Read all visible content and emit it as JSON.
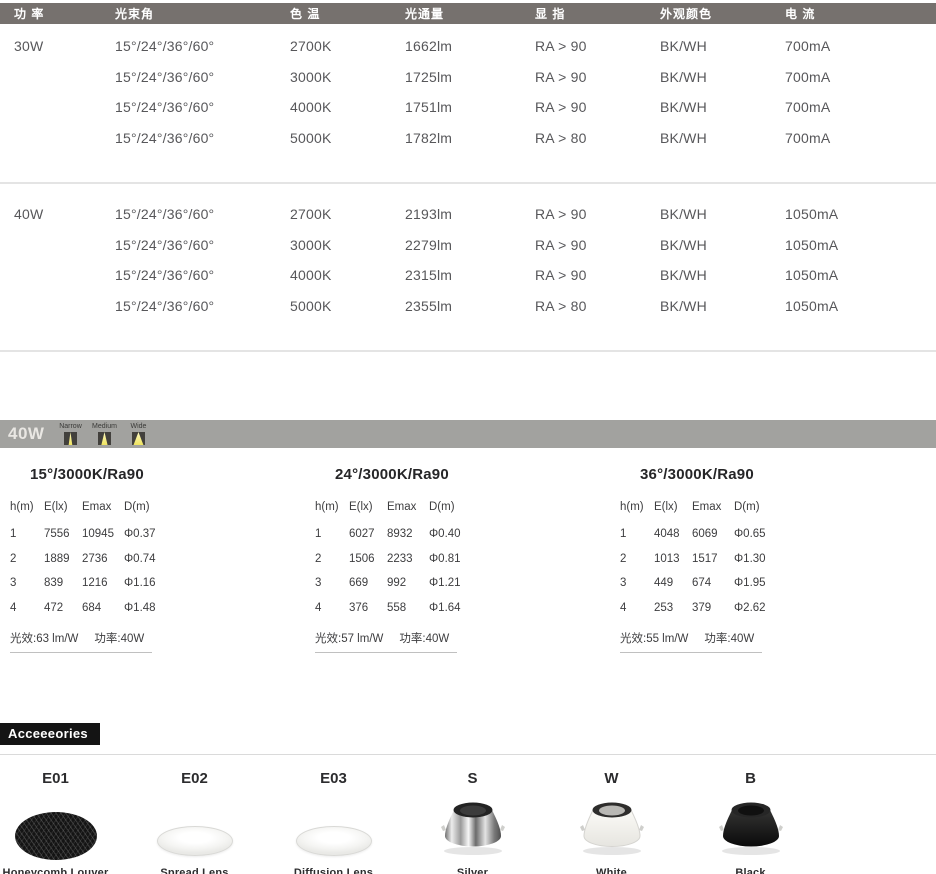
{
  "spec_table": {
    "headers": [
      "功 率",
      "光束角",
      "色 温",
      "光通量",
      "显 指",
      "外观颜色",
      "电 流"
    ],
    "groups": [
      {
        "power": "30W",
        "rows": [
          {
            "beam": "15°/24°/36°/60°",
            "cct": "2700K",
            "flux": "1662lm",
            "cri": "RA > 90",
            "finish": "BK/WH",
            "current": "700mA"
          },
          {
            "beam": "15°/24°/36°/60°",
            "cct": "3000K",
            "flux": "1725lm",
            "cri": "RA > 90",
            "finish": "BK/WH",
            "current": "700mA"
          },
          {
            "beam": "15°/24°/36°/60°",
            "cct": "4000K",
            "flux": "1751lm",
            "cri": "RA > 90",
            "finish": "BK/WH",
            "current": "700mA"
          },
          {
            "beam": "15°/24°/36°/60°",
            "cct": "5000K",
            "flux": "1782lm",
            "cri": "RA > 80",
            "finish": "BK/WH",
            "current": "700mA"
          }
        ]
      },
      {
        "power": "40W",
        "rows": [
          {
            "beam": "15°/24°/36°/60°",
            "cct": "2700K",
            "flux": "2193lm",
            "cri": "RA > 90",
            "finish": "BK/WH",
            "current": "1050mA"
          },
          {
            "beam": "15°/24°/36°/60°",
            "cct": "3000K",
            "flux": "2279lm",
            "cri": "RA > 90",
            "finish": "BK/WH",
            "current": "1050mA"
          },
          {
            "beam": "15°/24°/36°/60°",
            "cct": "4000K",
            "flux": "2315lm",
            "cri": "RA > 90",
            "finish": "BK/WH",
            "current": "1050mA"
          },
          {
            "beam": "15°/24°/36°/60°",
            "cct": "5000K",
            "flux": "2355lm",
            "cri": "RA > 80",
            "finish": "BK/WH",
            "current": "1050mA"
          }
        ]
      }
    ]
  },
  "photometrics": {
    "band": {
      "label": "40W",
      "beams": [
        {
          "label": "Narrow",
          "size": "narrow"
        },
        {
          "label": "Medium",
          "size": "medium"
        },
        {
          "label": "Wide",
          "size": "wide"
        }
      ]
    },
    "headers": [
      "h(m)",
      "E(lx)",
      "Emax",
      "D(m)"
    ],
    "tables": [
      {
        "title": "15°/3000K/Ra90",
        "rows": [
          [
            "1",
            "7556",
            "10945",
            "Φ0.37"
          ],
          [
            "2",
            "1889",
            "2736",
            "Φ0.74"
          ],
          [
            "3",
            "839",
            "1216",
            "Φ1.16"
          ],
          [
            "4",
            "472",
            "684",
            "Φ1.48"
          ]
        ],
        "efficacy": "光效:63 lm/W",
        "power": "功率:40W"
      },
      {
        "title": "24°/3000K/Ra90",
        "rows": [
          [
            "1",
            "6027",
            "8932",
            "Φ0.40"
          ],
          [
            "2",
            "1506",
            "2233",
            "Φ0.81"
          ],
          [
            "3",
            "669",
            "992",
            "Φ1.21"
          ],
          [
            "4",
            "376",
            "558",
            "Φ1.64"
          ]
        ],
        "efficacy": "光效:57 lm/W",
        "power": "功率:40W"
      },
      {
        "title": "36°/3000K/Ra90",
        "rows": [
          [
            "1",
            "4048",
            "6069",
            "Φ0.65"
          ],
          [
            "2",
            "1013",
            "1517",
            "Φ1.30"
          ],
          [
            "3",
            "449",
            "674",
            "Φ1.95"
          ],
          [
            "4",
            "253",
            "379",
            "Φ2.62"
          ]
        ],
        "efficacy": "光效:55 lm/W",
        "power": "功率:40W"
      }
    ]
  },
  "accessories": {
    "title": "Acceeeories",
    "items": [
      {
        "code": "E01",
        "name": "Honeycomb Louver",
        "type": "honeycomb"
      },
      {
        "code": "E02",
        "name": "Spread Lens",
        "type": "lens"
      },
      {
        "code": "E03",
        "name": "Diffusion Lens",
        "type": "lens"
      },
      {
        "code": "S",
        "name": "Silver",
        "type": "reflector-silver"
      },
      {
        "code": "W",
        "name": "White",
        "type": "reflector-white"
      },
      {
        "code": "B",
        "name": "Black",
        "type": "reflector-black"
      }
    ]
  },
  "colors": {
    "header_bar": "#76716e",
    "band": "#a2a29f",
    "beam_yellow": "#efe45f",
    "badge_black": "#141414",
    "separator": "#e4e4e4"
  }
}
